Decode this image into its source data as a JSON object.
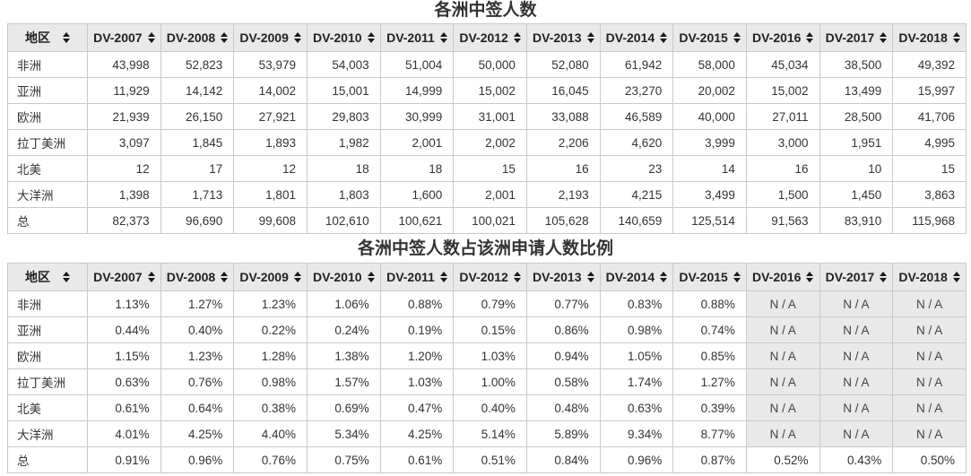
{
  "colors": {
    "header_bg": "#e9e9e9",
    "na_cell_bg": "#e9e9e9",
    "border": "#c9c9c9",
    "text": "#333333",
    "title_text": "#333333",
    "sort_icon": "#1a1a1a"
  },
  "na_label": "N / A",
  "tables": [
    {
      "title": "各洲中签人数",
      "region_column": "地区",
      "columns": [
        "DV-2007",
        "DV-2008",
        "DV-2009",
        "DV-2010",
        "DV-2011",
        "DV-2012",
        "DV-2013",
        "DV-2014",
        "DV-2015",
        "DV-2016",
        "DV-2017",
        "DV-2018"
      ],
      "rows": [
        {
          "region": "非洲",
          "values": [
            "43,998",
            "52,823",
            "53,979",
            "54,003",
            "51,004",
            "50,000",
            "52,080",
            "61,942",
            "58,000",
            "45,034",
            "38,500",
            "49,392"
          ]
        },
        {
          "region": "亚洲",
          "values": [
            "11,929",
            "14,142",
            "14,002",
            "15,001",
            "14,999",
            "15,002",
            "16,045",
            "23,270",
            "20,002",
            "15,002",
            "13,499",
            "15,997"
          ]
        },
        {
          "region": "欧洲",
          "values": [
            "21,939",
            "26,150",
            "27,921",
            "29,803",
            "30,999",
            "31,001",
            "33,088",
            "46,589",
            "40,000",
            "27,011",
            "28,500",
            "41,706"
          ]
        },
        {
          "region": "拉丁美洲",
          "values": [
            "3,097",
            "1,845",
            "1,893",
            "1,982",
            "2,001",
            "2,002",
            "2,206",
            "4,620",
            "3,999",
            "3,000",
            "1,951",
            "4,995"
          ]
        },
        {
          "region": "北美",
          "values": [
            "12",
            "17",
            "12",
            "18",
            "18",
            "15",
            "16",
            "23",
            "14",
            "16",
            "10",
            "15"
          ]
        },
        {
          "region": "大洋洲",
          "values": [
            "1,398",
            "1,713",
            "1,801",
            "1,803",
            "1,600",
            "2,001",
            "2,193",
            "4,215",
            "3,499",
            "1,500",
            "1,450",
            "3,863"
          ]
        },
        {
          "region": "总",
          "values": [
            "82,373",
            "96,690",
            "99,608",
            "102,610",
            "100,621",
            "100,021",
            "105,628",
            "140,659",
            "125,514",
            "91,563",
            "83,910",
            "115,968"
          ]
        }
      ]
    },
    {
      "title": "各洲中签人数占该洲申请人数比例",
      "region_column": "地区",
      "columns": [
        "DV-2007",
        "DV-2008",
        "DV-2009",
        "DV-2010",
        "DV-2011",
        "DV-2012",
        "DV-2013",
        "DV-2014",
        "DV-2015",
        "DV-2016",
        "DV-2017",
        "DV-2018"
      ],
      "rows": [
        {
          "region": "非洲",
          "values": [
            "1.13%",
            "1.27%",
            "1.23%",
            "1.06%",
            "0.88%",
            "0.79%",
            "0.77%",
            "0.83%",
            "0.88%",
            "N / A",
            "N / A",
            "N / A"
          ]
        },
        {
          "region": "亚洲",
          "values": [
            "0.44%",
            "0.40%",
            "0.22%",
            "0.24%",
            "0.19%",
            "0.15%",
            "0.86%",
            "0.98%",
            "0.74%",
            "N / A",
            "N / A",
            "N / A"
          ]
        },
        {
          "region": "欧洲",
          "values": [
            "1.15%",
            "1.23%",
            "1.28%",
            "1.38%",
            "1.20%",
            "1.03%",
            "0.94%",
            "1.05%",
            "0.85%",
            "N / A",
            "N / A",
            "N / A"
          ]
        },
        {
          "region": "拉丁美洲",
          "values": [
            "0.63%",
            "0.76%",
            "0.98%",
            "1.57%",
            "1.03%",
            "1.00%",
            "0.58%",
            "1.74%",
            "1.27%",
            "N / A",
            "N / A",
            "N / A"
          ]
        },
        {
          "region": "北美",
          "values": [
            "0.61%",
            "0.64%",
            "0.38%",
            "0.69%",
            "0.47%",
            "0.40%",
            "0.48%",
            "0.63%",
            "0.39%",
            "N / A",
            "N / A",
            "N / A"
          ]
        },
        {
          "region": "大洋洲",
          "values": [
            "4.01%",
            "4.25%",
            "4.40%",
            "5.34%",
            "4.25%",
            "5.14%",
            "5.89%",
            "9.34%",
            "8.77%",
            "N / A",
            "N / A",
            "N / A"
          ]
        },
        {
          "region": "总",
          "values": [
            "0.91%",
            "0.96%",
            "0.76%",
            "0.75%",
            "0.61%",
            "0.51%",
            "0.84%",
            "0.96%",
            "0.87%",
            "0.52%",
            "0.43%",
            "0.50%"
          ]
        }
      ]
    }
  ]
}
